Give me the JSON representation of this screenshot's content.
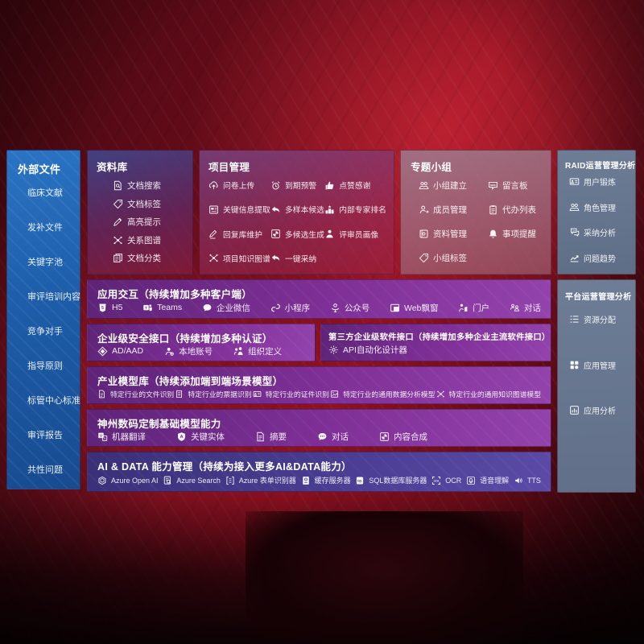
{
  "colors": {
    "background_red": "#6f0d19",
    "sidebar_blue": "#1e62ad",
    "band_purple": "#7b2f93",
    "ai_band_indigo": "#4a3d92",
    "slate_panel": "#68778f",
    "text": "#ffffff"
  },
  "sidebar": {
    "title": "外部文件",
    "items": [
      {
        "label": "临床文献"
      },
      {
        "label": "发补文件"
      },
      {
        "label": "关键字池"
      },
      {
        "label": "审评培训内容"
      },
      {
        "label": "竞争对手"
      },
      {
        "label": "指导原则"
      },
      {
        "label": "标管中心标准"
      },
      {
        "label": "审评报告"
      },
      {
        "label": "共性问题"
      }
    ]
  },
  "panels": {
    "library": {
      "title": "资料库",
      "items": [
        {
          "icon": "search-doc-icon",
          "label": "文档搜索"
        },
        {
          "icon": "tag-icon",
          "label": "文档标签"
        },
        {
          "icon": "highlight-pen-icon",
          "label": "高亮提示"
        },
        {
          "icon": "network-icon",
          "label": "关系图谱"
        },
        {
          "icon": "copy-doc-icon",
          "label": "文档分类"
        }
      ]
    },
    "project": {
      "title": "项目管理",
      "items": [
        {
          "icon": "cloud-upload-icon",
          "label": "问卷上传"
        },
        {
          "icon": "alarm-icon",
          "label": "到期预警"
        },
        {
          "icon": "thumb-up-icon",
          "label": "点赞感谢"
        },
        {
          "icon": "extract-icon",
          "label": "关键信息提取"
        },
        {
          "icon": "reply-icon",
          "label": "多样本候选"
        },
        {
          "icon": "ranking-icon",
          "label": "内部专家排名"
        },
        {
          "icon": "edit-pen-icon",
          "label": "回复库维护"
        },
        {
          "icon": "pinwheel-icon",
          "label": "多候选生成"
        },
        {
          "icon": "person-icon",
          "label": "评审员画像"
        },
        {
          "icon": "network-icon",
          "label": "项目知识图谱"
        },
        {
          "icon": "adopt-arrow-icon",
          "label": "一键采纳"
        }
      ]
    },
    "groups": {
      "title": "专题小组",
      "items": [
        {
          "icon": "people-icon",
          "label": "小组建立"
        },
        {
          "icon": "bbs-icon",
          "label": "留言板"
        },
        {
          "icon": "member-add-icon",
          "label": "成员管理"
        },
        {
          "icon": "clipboard-icon",
          "label": "代办列表"
        },
        {
          "icon": "album-icon",
          "label": "资料管理"
        },
        {
          "icon": "bell-icon",
          "label": "事项提醒"
        },
        {
          "icon": "tag-icon",
          "label": "小组标签"
        }
      ]
    },
    "raid": {
      "title": "RAID运营管理分析",
      "items": [
        {
          "icon": "id-card-icon",
          "label": "用户锻炼"
        },
        {
          "icon": "roles-icon",
          "label": "角色管理"
        },
        {
          "icon": "qa-chat-icon",
          "label": "采纳分析"
        },
        {
          "icon": "trend-icon",
          "label": "问题趋势"
        }
      ]
    },
    "platform": {
      "title": "平台运营管理分析",
      "items": [
        {
          "icon": "list-icon",
          "label": "资源分配"
        },
        {
          "icon": "apps-grid-icon",
          "label": "应用管理"
        },
        {
          "icon": "app-chart-icon",
          "label": "应用分析"
        }
      ]
    }
  },
  "bands": {
    "interaction": {
      "title": "应用交互（持续增加多种客户端）",
      "items": [
        {
          "icon": "html5-icon",
          "label": "H5"
        },
        {
          "icon": "teams-icon",
          "label": "Teams"
        },
        {
          "icon": "wecom-icon",
          "label": "企业微信"
        },
        {
          "icon": "miniprogram-icon",
          "label": "小程序"
        },
        {
          "icon": "official-account-icon",
          "label": "公众号"
        },
        {
          "icon": "web-window-icon",
          "label": "Web飘窗"
        },
        {
          "icon": "portal-icon",
          "label": "门户"
        },
        {
          "icon": "dialog-icon",
          "label": "对话"
        }
      ]
    },
    "security": {
      "title": "企业级安全接口（持续增加多种认证）",
      "items": [
        {
          "icon": "azure-ad-icon",
          "label": "AD/AAD"
        },
        {
          "icon": "local-account-icon",
          "label": "本地账号"
        },
        {
          "icon": "org-icon",
          "label": "组织定义"
        }
      ]
    },
    "thirdparty": {
      "title": "第三方企业级软件接口（持续增加多种企业主流软件接口）",
      "items": [
        {
          "icon": "api-gear-icon",
          "label": "API自动化设计器"
        }
      ]
    },
    "industry": {
      "title": "产业模型库（持续添加端到端场景模型）",
      "items": [
        {
          "icon": "doc-icon",
          "label": "特定行业的文件识别"
        },
        {
          "icon": "receipt-icon",
          "label": "特定行业的票据识别"
        },
        {
          "icon": "id-card-icon",
          "label": "特定行业的证件识别"
        },
        {
          "icon": "image-icon",
          "label": "特定行业的通用数据分析模型"
        },
        {
          "icon": "network-icon",
          "label": "特定行业的通用知识图谱模型"
        }
      ]
    },
    "base_models": {
      "title": "神州数码定制基础模型能力",
      "items": [
        {
          "icon": "translate-icon",
          "label": "机器翻译"
        },
        {
          "icon": "entity-icon",
          "label": "关键实体"
        },
        {
          "icon": "summary-icon",
          "label": "摘要"
        },
        {
          "icon": "chat-icon",
          "label": "对话"
        },
        {
          "icon": "pinwheel-icon",
          "label": "内容合成"
        }
      ]
    },
    "ai_data": {
      "title": "AI & DATA 能力管理（持续为接入更多AI&DATA能力）",
      "items": [
        {
          "icon": "openai-icon",
          "label": "Azure Open AI"
        },
        {
          "icon": "azure-search-icon",
          "label": "Azure Search"
        },
        {
          "icon": "form-recognizer-icon",
          "label": "Azure 表单识别器"
        },
        {
          "icon": "cache-server-icon",
          "label": "缓存服务器"
        },
        {
          "icon": "sql-db-icon",
          "label": "SQL数据库服务器"
        },
        {
          "icon": "ocr-icon",
          "label": "OCR"
        },
        {
          "icon": "speech-icon",
          "label": "语音理解"
        },
        {
          "icon": "tts-icon",
          "label": "TTS"
        }
      ]
    }
  }
}
